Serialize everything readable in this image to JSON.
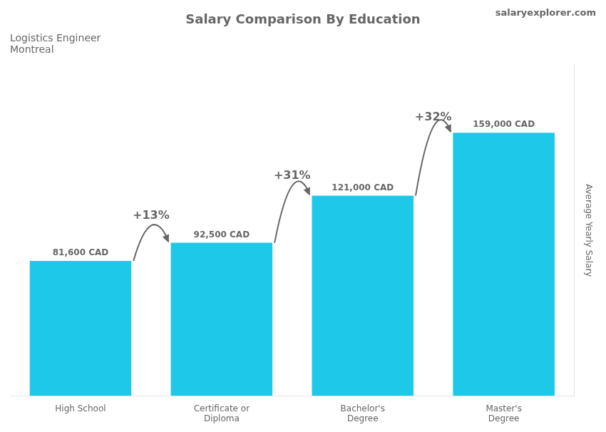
{
  "chart_data": {
    "type": "bar",
    "title": "Salary Comparison By Education",
    "subtitle": [
      "Logistics Engineer",
      "Montreal"
    ],
    "watermark": [
      "salary",
      "explorer",
      ".com"
    ],
    "ylabel": "Average Yearly Salary",
    "categories": [
      "High School",
      "Certificate or\nDiploma",
      "Bachelor's\nDegree",
      "Master's\nDegree"
    ],
    "values": [
      81600,
      92500,
      121000,
      159000
    ],
    "value_labels": [
      "81,600 CAD",
      "92,500 CAD",
      "121,000 CAD",
      "159,000 CAD"
    ],
    "data_labels": true,
    "annotations": [
      "+13%",
      "+31%",
      "+32%"
    ],
    "color": "#1ec8e8",
    "ylim": [
      0,
      200000
    ],
    "yticks": [],
    "tick_labels": "x",
    "grid": false
  }
}
